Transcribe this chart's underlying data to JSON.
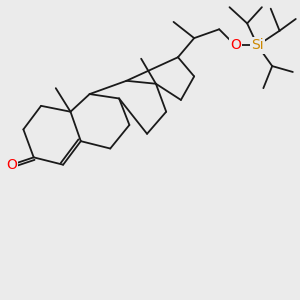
{
  "background_color": "#ebebeb",
  "bond_color": "#1a1a1a",
  "bond_width": 1.3,
  "atom_O_color": "#ff0000",
  "atom_Si_color": "#cc8800",
  "font_size_atom": 9.0,
  "figsize": [
    3.0,
    3.0
  ],
  "dpi": 100,
  "xlim": [
    0,
    10
  ],
  "ylim": [
    0,
    10
  ]
}
